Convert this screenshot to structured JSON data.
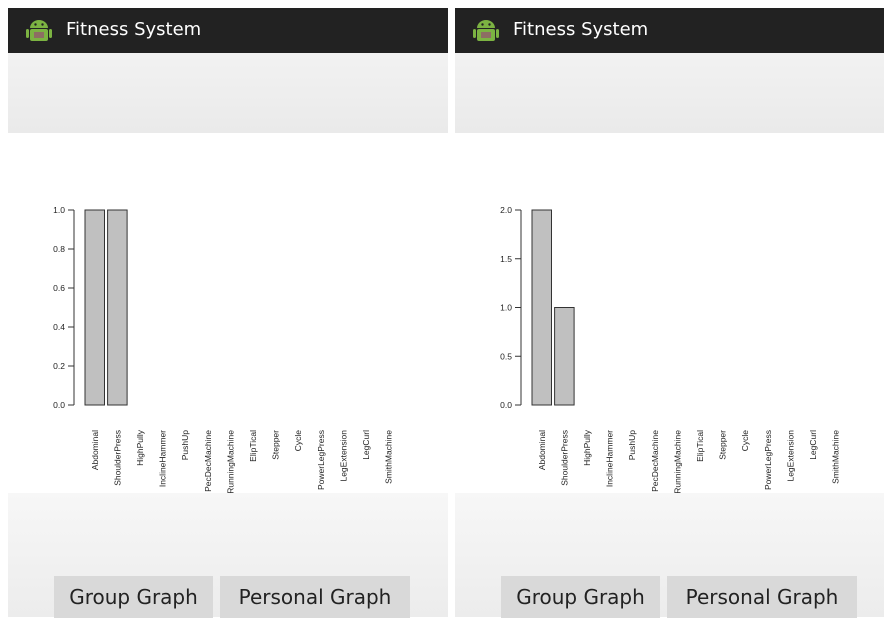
{
  "screens": [
    {
      "app_title": "Fitness System",
      "buttons": {
        "group_graph": "Group Graph",
        "personal_graph": "Personal Graph"
      },
      "icon": "android-robot-icon"
    },
    {
      "app_title": "Fitness System",
      "buttons": {
        "group_graph": "Group Graph",
        "personal_graph": "Personal Graph"
      },
      "icon": "android-robot-icon"
    }
  ],
  "colors": {
    "appbar": "#222222",
    "bar_fill": "#c0c0c0",
    "bar_stroke": "#333333",
    "icon_green": "#7cb342"
  },
  "chart_data": [
    {
      "type": "bar",
      "categories": [
        "Abdominal",
        "ShoulderPress",
        "HighPully",
        "InclineHammer",
        "PushUp",
        "PecDecMachine",
        "RunningMachine",
        "ElipTical",
        "Stepper",
        "Cycle",
        "PowerLegPress",
        "LegExtension",
        "LegCurl",
        "SmithMachine"
      ],
      "values": [
        1,
        1,
        0,
        0,
        0,
        0,
        0,
        0,
        0,
        0,
        0,
        0,
        0,
        0
      ],
      "ylim": [
        0,
        1.0
      ],
      "yticks": [
        "0.0",
        "0.2",
        "0.4",
        "0.6",
        "0.8",
        "1.0"
      ]
    },
    {
      "type": "bar",
      "categories": [
        "Abdominal",
        "ShoulderPress",
        "HighPully",
        "InclineHammer",
        "PushUp",
        "PecDecMachine",
        "RunningMachine",
        "ElipTical",
        "Stepper",
        "Cycle",
        "PowerLegPress",
        "LegExtension",
        "LegCurl",
        "SmithMachine"
      ],
      "values": [
        2,
        1,
        0,
        0,
        0,
        0,
        0,
        0,
        0,
        0,
        0,
        0,
        0,
        0
      ],
      "ylim": [
        0,
        2.0
      ],
      "yticks": [
        "0.0",
        "0.5",
        "1.0",
        "1.5",
        "2.0"
      ]
    }
  ]
}
